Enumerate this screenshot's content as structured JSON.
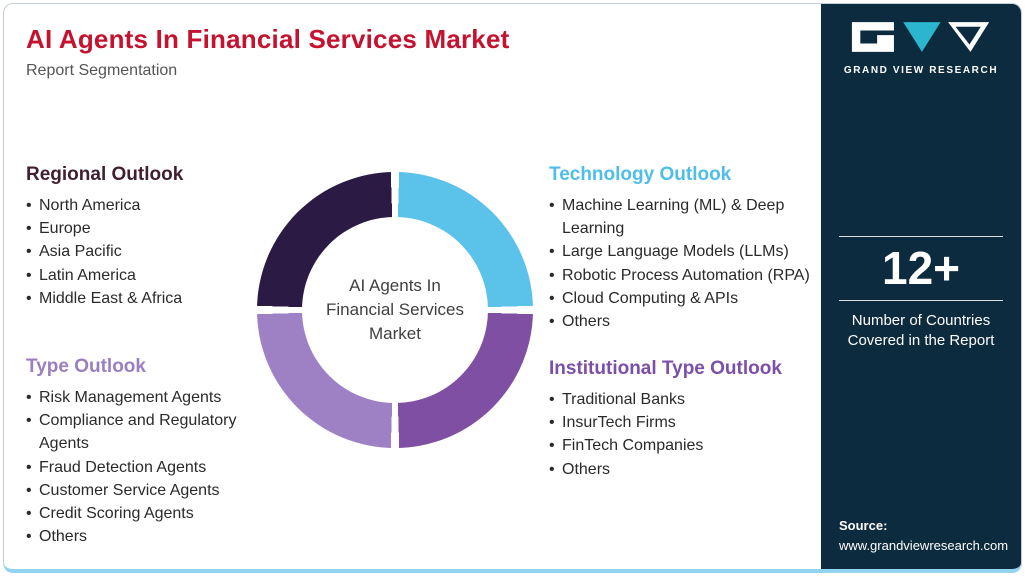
{
  "header": {
    "title": "AI Agents In Financial Services Market",
    "subtitle": "Report Segmentation"
  },
  "donut": {
    "center_label": "AI Agents In Financial Services Market",
    "segments": [
      {
        "name": "Technology Outlook",
        "color": "#5BC2E9"
      },
      {
        "name": "Institutional Type Outlook",
        "color": "#7E4FA3"
      },
      {
        "name": "Type Outlook",
        "color": "#9E80C4"
      },
      {
        "name": "Regional Outlook",
        "color": "#2B1A44"
      }
    ]
  },
  "chart_data": {
    "type": "pie",
    "title": "AI Agents In Financial Services Market",
    "categories": [
      "Technology Outlook",
      "Institutional Type Outlook",
      "Type Outlook",
      "Regional Outlook"
    ],
    "values": [
      25,
      25,
      25,
      25
    ],
    "colors": [
      "#5BC2E9",
      "#7E4FA3",
      "#9E80C4",
      "#2B1A44"
    ]
  },
  "sections": {
    "regional": {
      "title": "Regional Outlook",
      "accent": "#401F30",
      "items": [
        "North America",
        "Europe",
        "Asia Pacific",
        "Latin America",
        "Middle East & Africa"
      ]
    },
    "type": {
      "title": "Type Outlook",
      "accent": "#9B7FC0",
      "items": [
        "Risk Management Agents",
        "Compliance and Regulatory Agents",
        "Fraud Detection Agents",
        "Customer Service Agents",
        "Credit Scoring Agents",
        "Others"
      ]
    },
    "technology": {
      "title": "Technology Outlook",
      "accent": "#4FBEE8",
      "items": [
        "Machine Learning (ML) & Deep Learning",
        "Large Language Models (LLMs)",
        "Robotic Process Automation (RPA)",
        "Cloud Computing & APIs",
        "Others"
      ]
    },
    "institutional": {
      "title": "Institutional Type Outlook",
      "accent": "#7C4FA8",
      "items": [
        "Traditional Banks",
        "InsurTech Firms",
        "FinTech Companies",
        "Others"
      ]
    }
  },
  "sidebar": {
    "brand": "GRAND VIEW RESEARCH",
    "brand_teal": "#2CB5CE",
    "navy": "#0D2B3E",
    "stat_value": "12+",
    "stat_caption": "Number of Countries Covered in the Report",
    "source_label": "Source:",
    "source_url": "www.grandviewresearch.com"
  }
}
